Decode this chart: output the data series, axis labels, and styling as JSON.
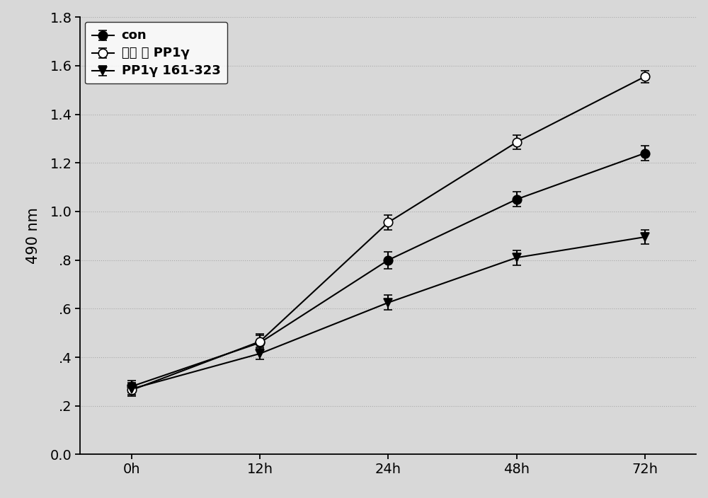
{
  "x_positions": [
    0,
    1,
    2,
    3,
    4
  ],
  "x_labels": [
    "0h",
    "12h",
    "24h",
    "48h",
    "72h"
  ],
  "series": [
    {
      "label": "con",
      "y": [
        0.28,
        0.46,
        0.8,
        1.05,
        1.24
      ],
      "yerr": [
        0.025,
        0.03,
        0.035,
        0.03,
        0.03
      ],
      "color": "black",
      "marker": "o",
      "markerfacecolor": "black",
      "markersize": 9,
      "linestyle": "-",
      "linewidth": 1.5
    },
    {
      "label": "野生 型 PP1γ",
      "y": [
        0.265,
        0.465,
        0.955,
        1.285,
        1.555
      ],
      "yerr": [
        0.025,
        0.03,
        0.03,
        0.03,
        0.025
      ],
      "color": "black",
      "marker": "o",
      "markerfacecolor": "white",
      "markersize": 9,
      "linestyle": "-",
      "linewidth": 1.5
    },
    {
      "label": "PP1γ 161-323",
      "y": [
        0.27,
        0.415,
        0.625,
        0.81,
        0.895
      ],
      "yerr": [
        0.025,
        0.025,
        0.03,
        0.03,
        0.03
      ],
      "color": "black",
      "marker": "v",
      "markerfacecolor": "black",
      "markersize": 9,
      "linestyle": "-",
      "linewidth": 1.5
    }
  ],
  "ylabel": "490 nm",
  "ylim": [
    0.0,
    1.8
  ],
  "yticks": [
    0.0,
    0.2,
    0.4,
    0.6,
    0.8,
    1.0,
    1.2,
    1.4,
    1.6,
    1.8
  ],
  "ytick_labels": [
    "0.0",
    ".2",
    ".4",
    ".6",
    ".8",
    "1.0",
    "1.2",
    "1.4",
    "1.6",
    "1.8"
  ],
  "background_color": "#d8d8d8",
  "plot_bg_color": "#d8d8d8",
  "legend_loc": "upper left",
  "legend_fontsize": 13,
  "axis_fontsize": 15,
  "tick_fontsize": 14
}
